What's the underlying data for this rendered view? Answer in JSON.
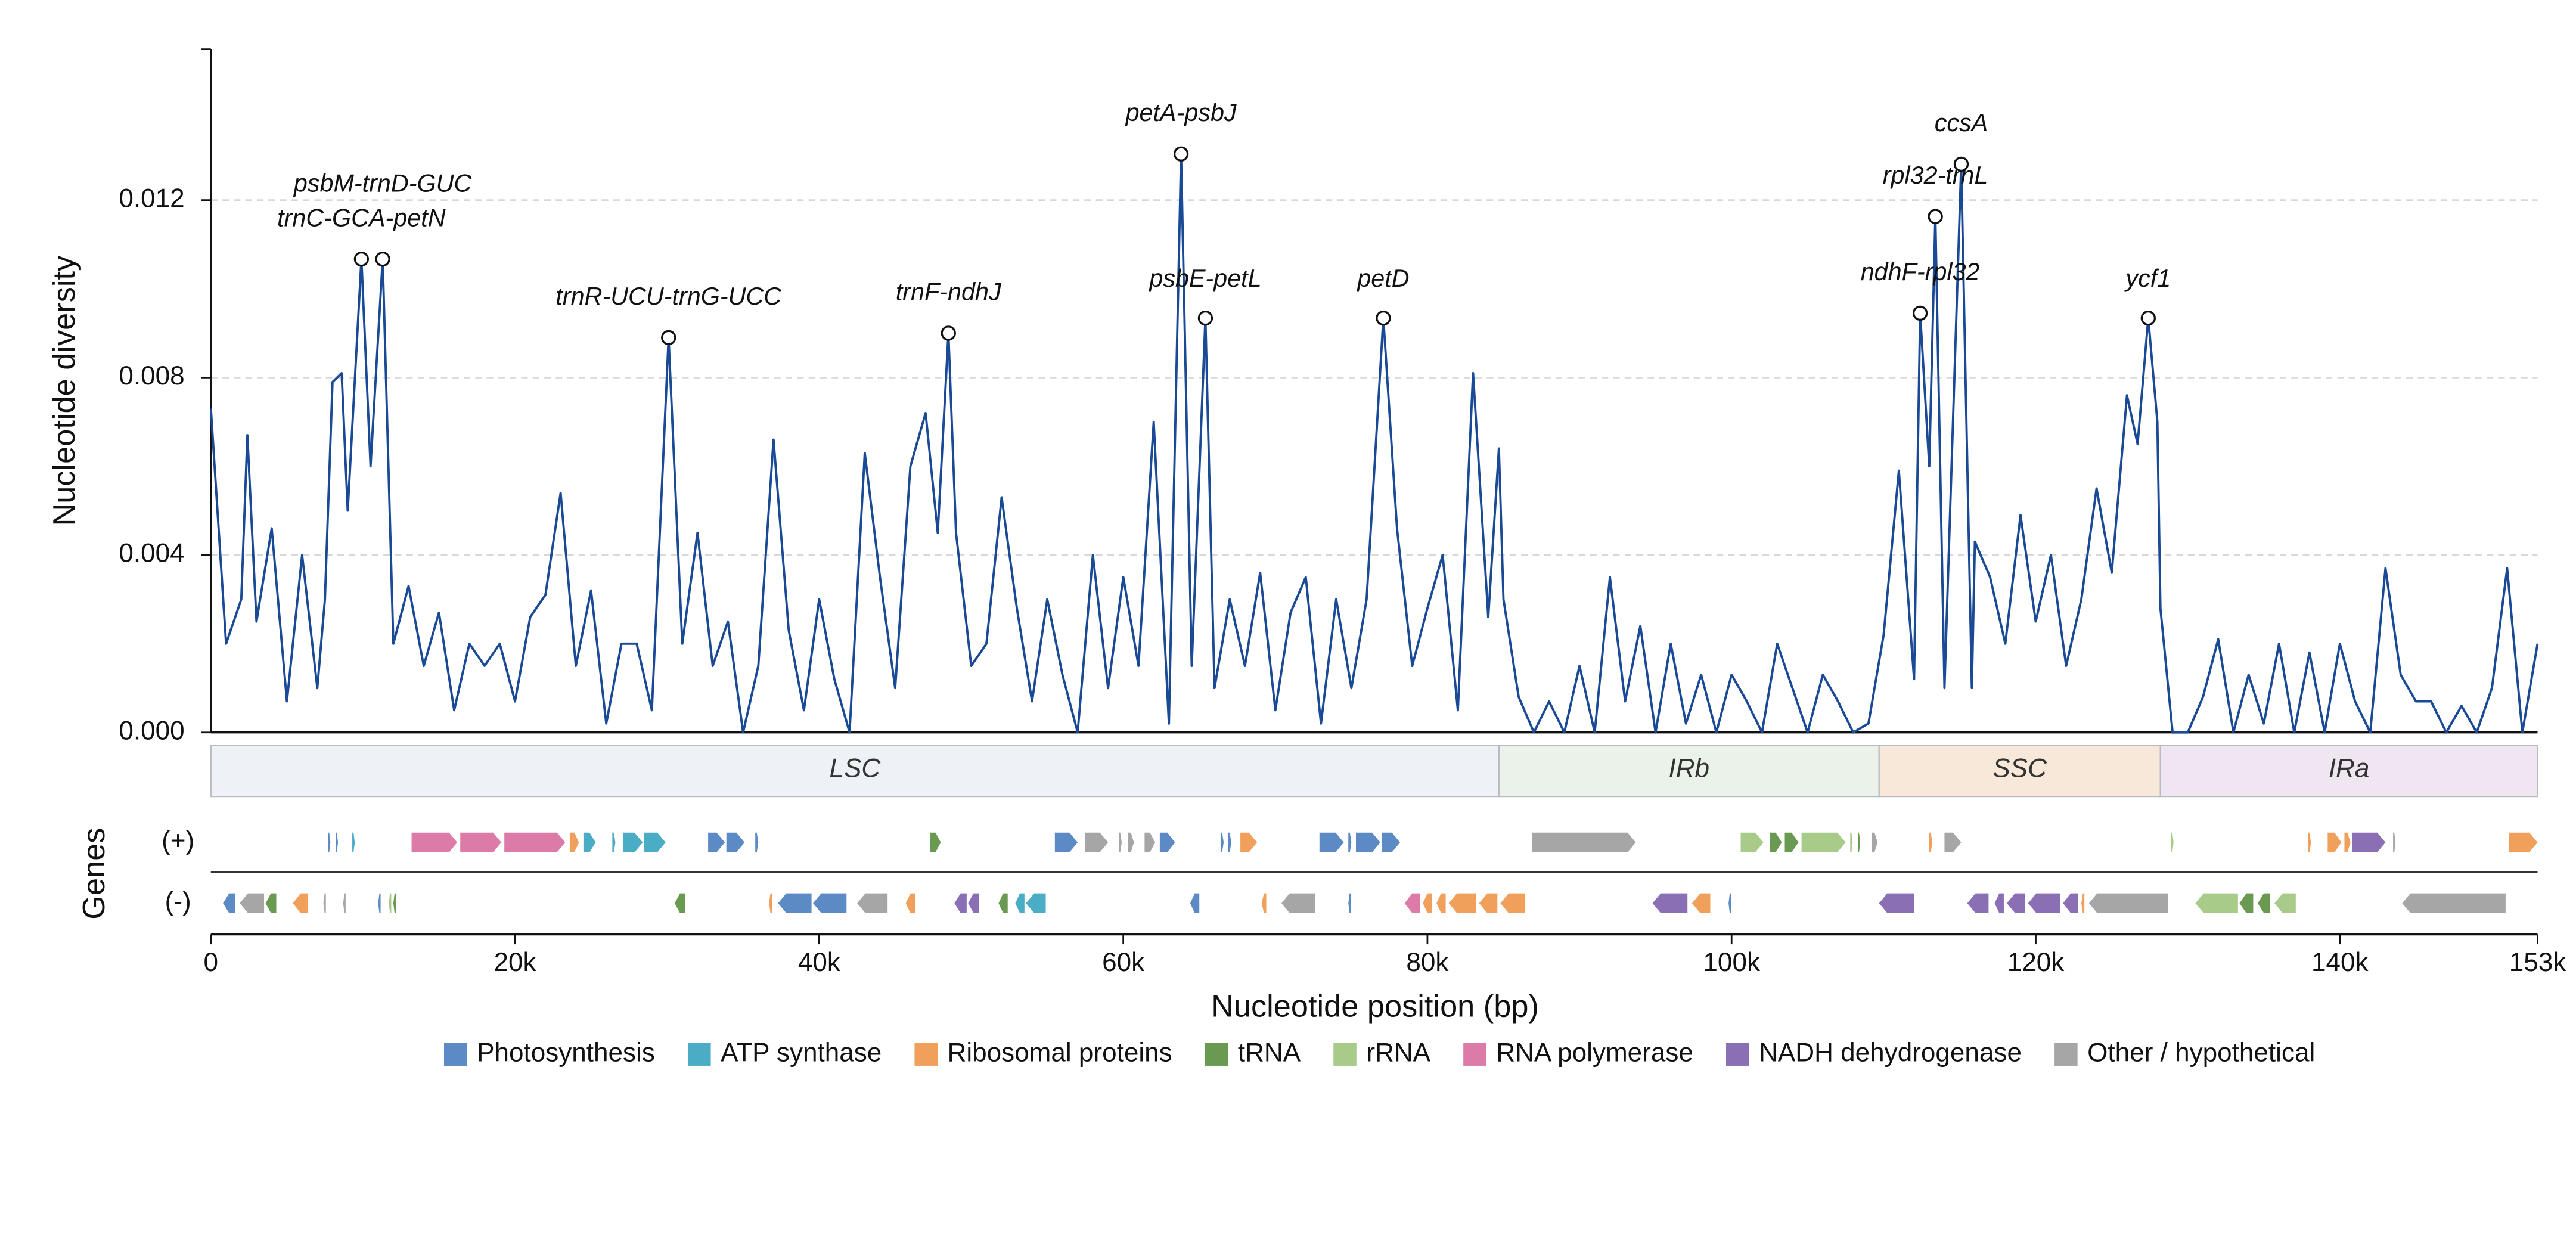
{
  "chart_data": {
    "type": "line",
    "ylabel": "Nucleotide diversity",
    "xlabel": "Nucleotide position (bp)",
    "color": "#1a4a95",
    "xlim": [
      0,
      153000
    ],
    "xticks": [
      0,
      {
        "value": 20000,
        "label": "20k"
      },
      {
        "value": 40000,
        "label": "40k"
      },
      {
        "value": 60000,
        "label": "60k"
      },
      {
        "value": 80000,
        "label": "80k"
      },
      {
        "value": 100000,
        "label": "100k"
      },
      {
        "value": 120000,
        "label": "120k"
      },
      {
        "value": 140000,
        "label": "140k"
      },
      {
        "value": 153000,
        "label": "153k"
      }
    ],
    "ylim": [
      0,
      0.0154
    ],
    "yticks": [
      {
        "value": 0,
        "label": "0.000"
      },
      {
        "value": 0.004,
        "label": "0.004"
      },
      {
        "value": 0.008,
        "label": "0.008"
      },
      {
        "value": 0.012,
        "label": "0.012"
      }
    ],
    "grid": true,
    "x": [
      0,
      1000,
      2000,
      2400,
      3000,
      4000,
      5000,
      6000,
      7000,
      7500,
      8000,
      8600,
      9000,
      9900,
      10500,
      11300,
      12000,
      13000,
      14000,
      15000,
      16000,
      17000,
      18000,
      19000,
      20000,
      21000,
      22000,
      23000,
      24000,
      25000,
      26000,
      27000,
      28000,
      29000,
      30100,
      31000,
      32000,
      33000,
      34000,
      35000,
      36000,
      37000,
      38000,
      39000,
      40000,
      41000,
      42000,
      43000,
      44000,
      45000,
      46000,
      47000,
      47800,
      48500,
      49000,
      50000,
      51000,
      52000,
      53000,
      54000,
      55000,
      56000,
      57000,
      58000,
      59000,
      60000,
      61000,
      62000,
      63000,
      63800,
      64500,
      65400,
      66000,
      67000,
      68000,
      69000,
      70000,
      71000,
      72000,
      73000,
      74000,
      75000,
      76000,
      77100,
      78000,
      79000,
      80000,
      81000,
      82000,
      83000,
      84000,
      84700,
      85000,
      86000,
      87000,
      88000,
      89000,
      90000,
      91000,
      92000,
      93000,
      94000,
      95000,
      96000,
      97000,
      98000,
      99000,
      100000,
      101000,
      102000,
      103000,
      104000,
      105000,
      106000,
      107000,
      108000,
      109000,
      110000,
      111000,
      112000,
      112400,
      113000,
      113400,
      114000,
      115100,
      115800,
      116000,
      117000,
      118000,
      119000,
      120000,
      121000,
      122000,
      123000,
      124000,
      125000,
      126000,
      126700,
      127400,
      128000,
      128200,
      129000,
      130000,
      131000,
      132000,
      133000,
      134000,
      135000,
      136000,
      137000,
      138000,
      139000,
      140000,
      141000,
      142000,
      143000,
      144000,
      145000,
      146000,
      147000,
      148000,
      149000,
      150000,
      151000,
      152000,
      153000
    ],
    "values": [
      0.0073,
      0.002,
      0.003,
      0.0067,
      0.0025,
      0.0046,
      0.0007,
      0.004,
      0.001,
      0.003,
      0.0079,
      0.0081,
      0.005,
      0.01067,
      0.006,
      0.01067,
      0.002,
      0.0033,
      0.0015,
      0.0027,
      0.0005,
      0.002,
      0.0015,
      0.002,
      0.0007,
      0.0026,
      0.0031,
      0.0054,
      0.0015,
      0.0032,
      0.0002,
      0.002,
      0.002,
      0.0005,
      0.0089,
      0.002,
      0.0045,
      0.0015,
      0.0025,
      0,
      0.0015,
      0.0066,
      0.0023,
      0.0005,
      0.003,
      0.0012,
      0,
      0.0063,
      0.0035,
      0.001,
      0.006,
      0.0072,
      0.0045,
      0.009,
      0.0045,
      0.0015,
      0.002,
      0.0053,
      0.0028,
      0.0007,
      0.003,
      0.0013,
      0,
      0.004,
      0.001,
      0.0035,
      0.0015,
      0.007,
      0.0002,
      0.01304,
      0.0015,
      0.00934,
      0.001,
      0.003,
      0.0015,
      0.0036,
      0.0005,
      0.0027,
      0.0035,
      0.0002,
      0.003,
      0.001,
      0.003,
      0.00934,
      0.0046,
      0.0015,
      0.0028,
      0.004,
      0.0005,
      0.0081,
      0.0026,
      0.0064,
      0.003,
      0.0008,
      0,
      0.0007,
      0,
      0.0015,
      0,
      0.0035,
      0.0007,
      0.0024,
      0,
      0.002,
      0.0002,
      0.0013,
      0,
      0.0013,
      0.0007,
      0,
      0.002,
      0.001,
      0,
      0.0013,
      0.0007,
      0,
      0.0002,
      0.0022,
      0.0059,
      0.0012,
      0.00945,
      0.006,
      0.01163,
      0.001,
      0.01281,
      0.001,
      0.0043,
      0.0035,
      0.002,
      0.0049,
      0.0025,
      0.004,
      0.0015,
      0.003,
      0.0055,
      0.0036,
      0.0076,
      0.0065,
      0.00934,
      0.007,
      0.0028,
      0,
      0,
      0.0008,
      0.0021,
      0,
      0.0013,
      0.0002,
      0.002,
      0,
      0.0018,
      0,
      0.002,
      0.0007,
      0,
      0.0037,
      0.0013,
      0.0007,
      0.0007,
      0,
      0.0006,
      0,
      0.001,
      0.0037,
      0,
      0.002
    ],
    "peaks": [
      {
        "label": "trnC-GCA-petN",
        "x": 9900,
        "y": 0.01067
      },
      {
        "label": "psbM-trnD-GUC",
        "x": 11300,
        "y": 0.01067
      },
      {
        "label": "trnR-UCU-trnG-UCC",
        "x": 30100,
        "y": 0.0089
      },
      {
        "label": "trnF-ndhJ",
        "x": 48500,
        "y": 0.009
      },
      {
        "label": "petA-psbJ",
        "x": 63800,
        "y": 0.01304
      },
      {
        "label": "psbE-petL",
        "x": 65400,
        "y": 0.00934
      },
      {
        "label": "petD",
        "x": 77100,
        "y": 0.00934
      },
      {
        "label": "ndhF-rpl32",
        "x": 112400,
        "y": 0.00945
      },
      {
        "label": "rpl32-trnL",
        "x": 113400,
        "y": 0.01163
      },
      {
        "label": "ccsA",
        "x": 115100,
        "y": 0.01281
      },
      {
        "label": "ycf1",
        "x": 127400,
        "y": 0.00934
      }
    ],
    "regions": [
      {
        "name": "LSC",
        "start": 0,
        "end": 84700,
        "color": "#eef2f6"
      },
      {
        "name": "IRb",
        "start": 84700,
        "end": 109700,
        "color": "#ebf2ea"
      },
      {
        "name": "SSC",
        "start": 109700,
        "end": 128200,
        "color": "#f8e8d9"
      },
      {
        "name": "IRa",
        "start": 128200,
        "end": 153000,
        "color": "#f0e6f2"
      }
    ],
    "gene_title": "Genes",
    "legend": [
      {
        "name": "Photosynthesis",
        "color": "#5b8ac4"
      },
      {
        "name": "ATP synthase",
        "color": "#4bacc6"
      },
      {
        "name": "Ribosomal proteins",
        "color": "#f0a05a"
      },
      {
        "name": "tRNA",
        "color": "#6a9a52"
      },
      {
        "name": "rRNA",
        "color": "#a9cb8a"
      },
      {
        "name": "RNA polymerase",
        "color": "#dc7aa8"
      },
      {
        "name": "NADH dehydrogenase",
        "color": "#8b6fb4"
      },
      {
        "name": "Other / hypothetical",
        "color": "#a6a6a6"
      }
    ],
    "tracks": [
      {
        "label": "(+)",
        "genes": [
          {
            "start": 7700,
            "end": 7800,
            "category": "Photosynthesis"
          },
          {
            "start": 8200,
            "end": 8300,
            "category": "Photosynthesis"
          },
          {
            "start": 9300,
            "end": 9400,
            "category": "ATP synthase"
          },
          {
            "start": 13200,
            "end": 16200,
            "category": "RNA polymerase"
          },
          {
            "start": 16400,
            "end": 19100,
            "category": "RNA polymerase"
          },
          {
            "start": 19300,
            "end": 23300,
            "category": "RNA polymerase"
          },
          {
            "start": 23600,
            "end": 24200,
            "category": "Ribosomal proteins"
          },
          {
            "start": 24500,
            "end": 25300,
            "category": "ATP synthase"
          },
          {
            "start": 26400,
            "end": 26600,
            "category": "ATP synthase"
          },
          {
            "start": 27100,
            "end": 28400,
            "category": "ATP synthase"
          },
          {
            "start": 28500,
            "end": 29900,
            "category": "ATP synthase"
          },
          {
            "start": 32700,
            "end": 33800,
            "category": "Photosynthesis"
          },
          {
            "start": 33900,
            "end": 35100,
            "category": "Photosynthesis"
          },
          {
            "start": 35800,
            "end": 36000,
            "category": "Photosynthesis"
          },
          {
            "start": 47300,
            "end": 48000,
            "category": "tRNA"
          },
          {
            "start": 55500,
            "end": 57000,
            "category": "Photosynthesis"
          },
          {
            "start": 57500,
            "end": 59000,
            "category": "Other / hypothetical"
          },
          {
            "start": 59700,
            "end": 59900,
            "category": "Other / hypothetical"
          },
          {
            "start": 60300,
            "end": 60700,
            "category": "Other / hypothetical"
          },
          {
            "start": 61400,
            "end": 62100,
            "category": "Other / hypothetical"
          },
          {
            "start": 62400,
            "end": 63400,
            "category": "Photosynthesis"
          },
          {
            "start": 66400,
            "end": 66600,
            "category": "Photosynthesis"
          },
          {
            "start": 66900,
            "end": 67100,
            "category": "Photosynthesis"
          },
          {
            "start": 67700,
            "end": 68800,
            "category": "Ribosomal proteins"
          },
          {
            "start": 72900,
            "end": 74500,
            "category": "Photosynthesis"
          },
          {
            "start": 74800,
            "end": 75000,
            "category": "Photosynthesis"
          },
          {
            "start": 75300,
            "end": 76900,
            "category": "Photosynthesis"
          },
          {
            "start": 77000,
            "end": 78200,
            "category": "Photosynthesis"
          },
          {
            "start": 86900,
            "end": 93700,
            "category": "Other / hypothetical"
          },
          {
            "start": 100600,
            "end": 102100,
            "category": "rRNA"
          },
          {
            "start": 102500,
            "end": 103300,
            "category": "tRNA"
          },
          {
            "start": 103500,
            "end": 104400,
            "category": "tRNA"
          },
          {
            "start": 104600,
            "end": 107500,
            "category": "rRNA"
          },
          {
            "start": 107800,
            "end": 107900,
            "category": "rRNA"
          },
          {
            "start": 108300,
            "end": 108400,
            "category": "tRNA"
          },
          {
            "start": 109200,
            "end": 109600,
            "category": "Other / hypothetical"
          },
          {
            "start": 113000,
            "end": 113200,
            "category": "Ribosomal proteins"
          },
          {
            "start": 114000,
            "end": 115100,
            "category": "Other / hypothetical"
          },
          {
            "start": 128900,
            "end": 129000,
            "category": "rRNA"
          },
          {
            "start": 137900,
            "end": 138100,
            "category": "Ribosomal proteins"
          },
          {
            "start": 139200,
            "end": 140100,
            "category": "Ribosomal proteins"
          },
          {
            "start": 140300,
            "end": 140700,
            "category": "Ribosomal proteins"
          },
          {
            "start": 140800,
            "end": 143000,
            "category": "NADH dehydrogenase"
          },
          {
            "start": 143500,
            "end": 143600,
            "category": "Other / hypothetical"
          },
          {
            "start": 151100,
            "end": 153000,
            "category": "Ribosomal proteins"
          }
        ]
      },
      {
        "label": "(-)",
        "genes": [
          {
            "start": 800,
            "end": 1600,
            "category": "Photosynthesis"
          },
          {
            "start": 1900,
            "end": 3500,
            "category": "Other / hypothetical"
          },
          {
            "start": 3600,
            "end": 4300,
            "category": "tRNA"
          },
          {
            "start": 5400,
            "end": 6400,
            "category": "Ribosomal proteins"
          },
          {
            "start": 7400,
            "end": 7500,
            "category": "Other / hypothetical"
          },
          {
            "start": 8700,
            "end": 8800,
            "category": "Other / hypothetical"
          },
          {
            "start": 11000,
            "end": 11100,
            "category": "Photosynthesis"
          },
          {
            "start": 11700,
            "end": 11800,
            "category": "rRNA"
          },
          {
            "start": 12000,
            "end": 12100,
            "category": "tRNA"
          },
          {
            "start": 30500,
            "end": 31200,
            "category": "tRNA"
          },
          {
            "start": 36700,
            "end": 36900,
            "category": "Ribosomal proteins"
          },
          {
            "start": 37300,
            "end": 39500,
            "category": "Photosynthesis"
          },
          {
            "start": 39600,
            "end": 41800,
            "category": "Photosynthesis"
          },
          {
            "start": 42500,
            "end": 44500,
            "category": "Other / hypothetical"
          },
          {
            "start": 45700,
            "end": 46300,
            "category": "Ribosomal proteins"
          },
          {
            "start": 48900,
            "end": 49700,
            "category": "NADH dehydrogenase"
          },
          {
            "start": 49800,
            "end": 50500,
            "category": "NADH dehydrogenase"
          },
          {
            "start": 51800,
            "end": 52400,
            "category": "tRNA"
          },
          {
            "start": 52900,
            "end": 53500,
            "category": "ATP synthase"
          },
          {
            "start": 53600,
            "end": 54900,
            "category": "ATP synthase"
          },
          {
            "start": 64400,
            "end": 65000,
            "category": "Photosynthesis"
          },
          {
            "start": 69100,
            "end": 69400,
            "category": "Ribosomal proteins"
          },
          {
            "start": 70400,
            "end": 72600,
            "category": "Other / hypothetical"
          },
          {
            "start": 74800,
            "end": 74900,
            "category": "Photosynthesis"
          },
          {
            "start": 78500,
            "end": 79500,
            "category": "RNA polymerase"
          },
          {
            "start": 79700,
            "end": 80300,
            "category": "Ribosomal proteins"
          },
          {
            "start": 80600,
            "end": 81200,
            "category": "Ribosomal proteins"
          },
          {
            "start": 81400,
            "end": 83200,
            "category": "Ribosomal proteins"
          },
          {
            "start": 83400,
            "end": 84600,
            "category": "Ribosomal proteins"
          },
          {
            "start": 84800,
            "end": 86400,
            "category": "Ribosomal proteins"
          },
          {
            "start": 94800,
            "end": 97100,
            "category": "NADH dehydrogenase"
          },
          {
            "start": 97400,
            "end": 98600,
            "category": "Ribosomal proteins"
          },
          {
            "start": 99800,
            "end": 99900,
            "category": "Photosynthesis"
          },
          {
            "start": 109700,
            "end": 112000,
            "category": "NADH dehydrogenase"
          },
          {
            "start": 115500,
            "end": 116900,
            "category": "NADH dehydrogenase"
          },
          {
            "start": 117300,
            "end": 117900,
            "category": "NADH dehydrogenase"
          },
          {
            "start": 118100,
            "end": 119300,
            "category": "NADH dehydrogenase"
          },
          {
            "start": 119500,
            "end": 121600,
            "category": "NADH dehydrogenase"
          },
          {
            "start": 121800,
            "end": 122800,
            "category": "NADH dehydrogenase"
          },
          {
            "start": 123000,
            "end": 123200,
            "category": "Ribosomal proteins"
          },
          {
            "start": 123500,
            "end": 128700,
            "category": "Other / hypothetical"
          },
          {
            "start": 130500,
            "end": 133300,
            "category": "rRNA"
          },
          {
            "start": 133400,
            "end": 134300,
            "category": "tRNA"
          },
          {
            "start": 134600,
            "end": 135400,
            "category": "tRNA"
          },
          {
            "start": 135700,
            "end": 137100,
            "category": "rRNA"
          },
          {
            "start": 144100,
            "end": 150900,
            "category": "Other / hypothetical"
          }
        ]
      }
    ]
  }
}
